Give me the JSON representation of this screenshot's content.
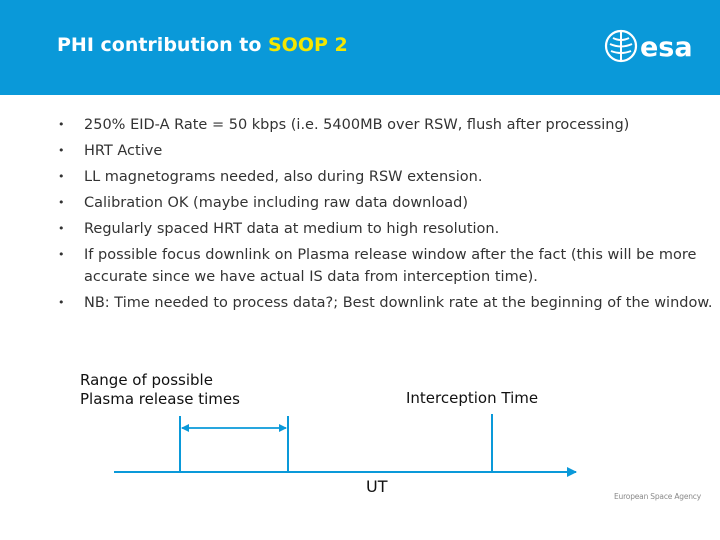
{
  "header": {
    "title_prefix": "PHI contribution to ",
    "title_highlight": "SOOP 2",
    "logo_text": "esa",
    "colors": {
      "band": "#0a99d9",
      "title": "#ffffff",
      "highlight": "#f4e600"
    }
  },
  "bullets": [
    "250% EID-A Rate = 50 kbps (i.e. 5400MB over RSW, flush after processing)",
    "HRT Active",
    "LL magnetograms needed, also during RSW extension.",
    "Calibration OK (maybe including raw data download)",
    "Regularly spaced HRT data at medium to high resolution.",
    "If possible focus downlink on Plasma release window after the fact (this will be more accurate since we have actual IS data from interception time).",
    "NB: Time needed to process data?; Best downlink rate at the beginning of the window."
  ],
  "bullet_glyph": "•",
  "diagram": {
    "range_label_line1": "Range of possible",
    "range_label_line2": "Plasma release times",
    "interception_label": "Interception Time",
    "axis_label": "UT"
  },
  "footer": {
    "agency": "European Space Agency"
  }
}
